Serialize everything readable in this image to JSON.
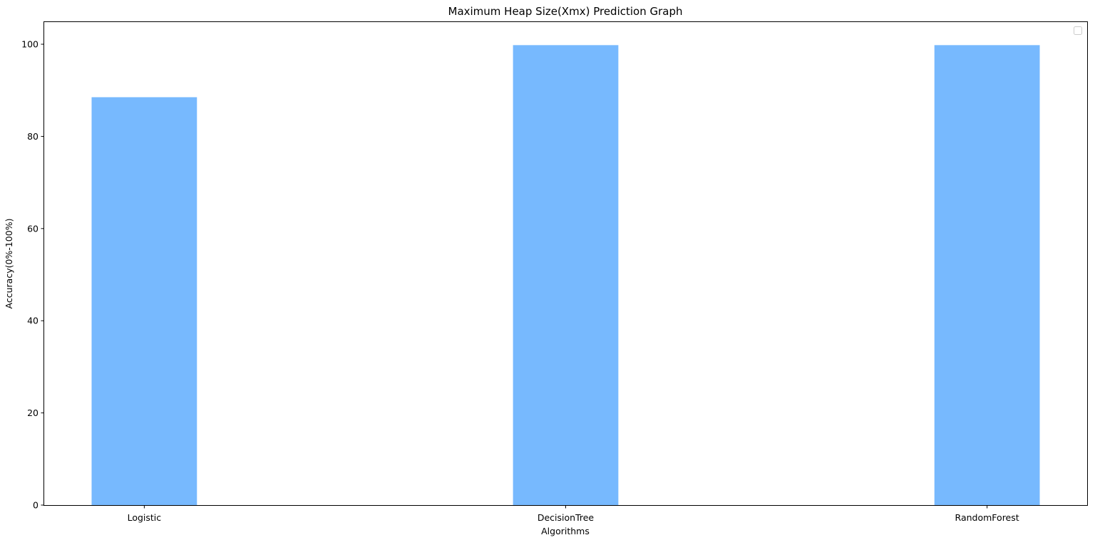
{
  "chart_data": {
    "type": "bar",
    "title": "Maximum Heap Size(Xmx) Prediction Graph",
    "xlabel": "Algorithms",
    "ylabel": "Accuracy(0%-100%)",
    "categories": [
      "Logistic",
      "DecisionTree",
      "RandomForest"
    ],
    "values": [
      88.5,
      99.8,
      99.8
    ],
    "ylim": [
      0,
      104.8
    ],
    "yticks": [
      0,
      20,
      40,
      60,
      80,
      100
    ],
    "bar_color": "#77b9fe",
    "grid": false,
    "legend": {
      "placement": "top-right",
      "entries": []
    }
  }
}
